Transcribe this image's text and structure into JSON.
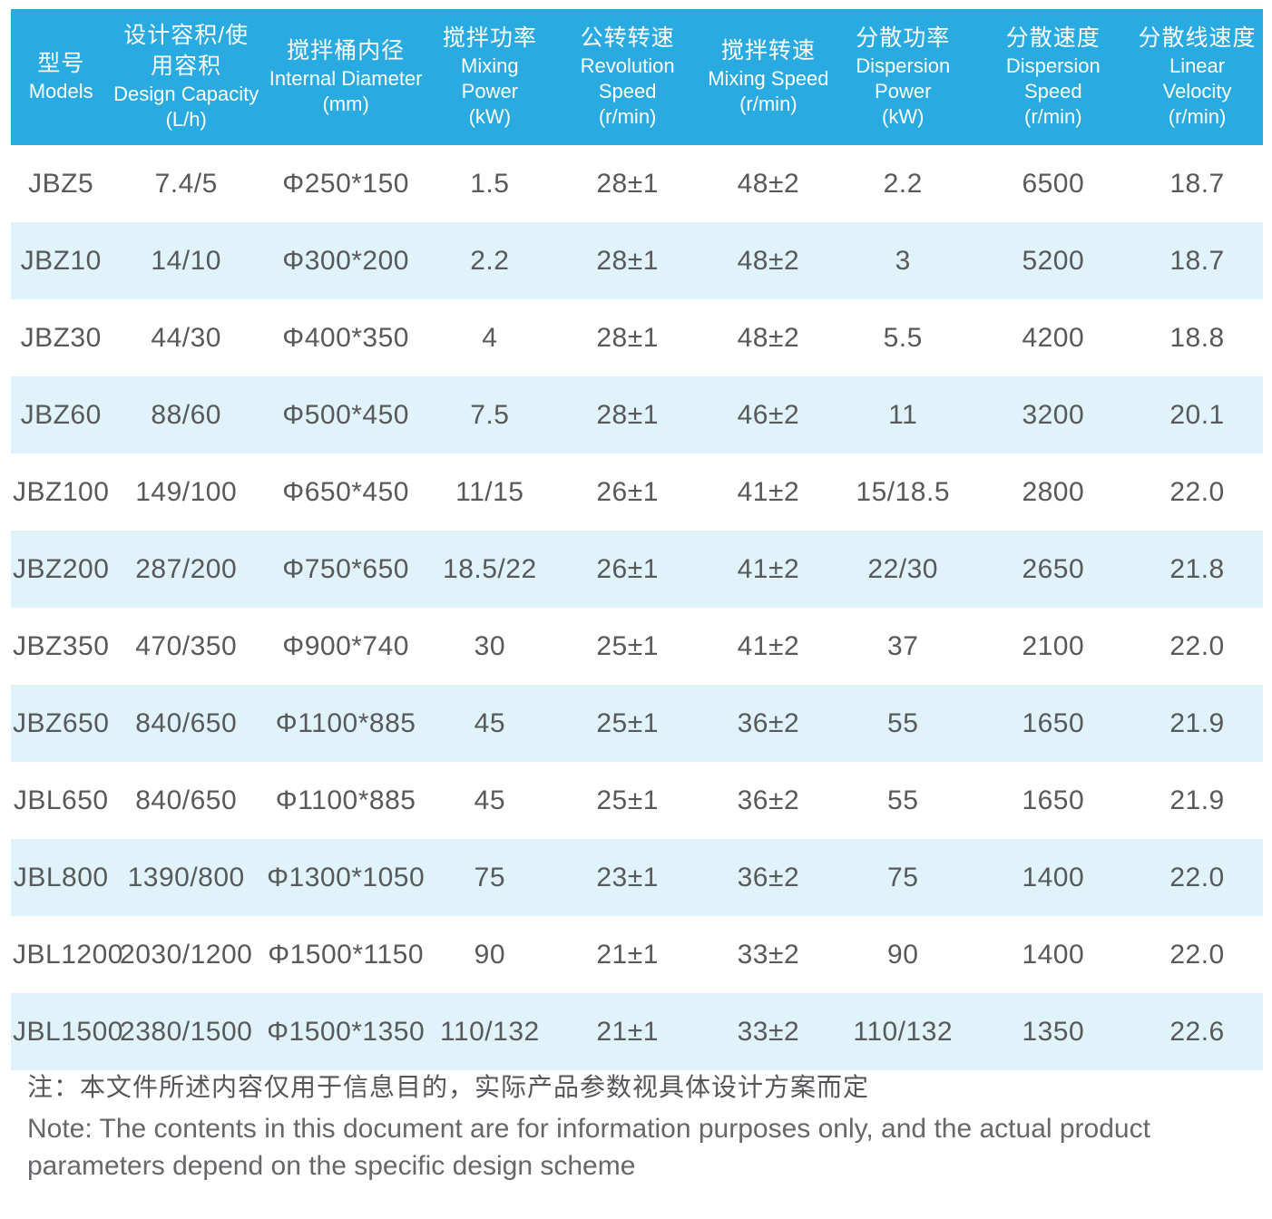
{
  "table": {
    "columns": [
      {
        "zh": "型号",
        "en": "Models",
        "unit": ""
      },
      {
        "zh": "设计容积/使用容积",
        "en": "Design Capacity",
        "unit": "(L/h)"
      },
      {
        "zh": "搅拌桶内径",
        "en": "Internal Diameter",
        "unit": "(mm)"
      },
      {
        "zh": "搅拌功率",
        "en": "Mixing Power",
        "unit": "(kW)"
      },
      {
        "zh": "公转转速",
        "en": "Revolution Speed",
        "unit": "(r/min)"
      },
      {
        "zh": "搅拌转速",
        "en": "Mixing Speed",
        "unit": "(r/min)"
      },
      {
        "zh": "分散功率",
        "en": "Dispersion Power",
        "unit": "(kW)"
      },
      {
        "zh": "分散速度",
        "en": "Dispersion Speed",
        "unit": "(r/min)"
      },
      {
        "zh": "分散线速度",
        "en": "Linear Velocity",
        "unit": "(r/min)"
      }
    ],
    "col_widths_pct": [
      8,
      12,
      13.5,
      9.5,
      12.5,
      10,
      11.5,
      12.5,
      10.5
    ],
    "rows": [
      [
        "JBZ5",
        "7.4/5",
        "Φ250*150",
        "1.5",
        "28±1",
        "48±2",
        "2.2",
        "6500",
        "18.7"
      ],
      [
        "JBZ10",
        "14/10",
        "Φ300*200",
        "2.2",
        "28±1",
        "48±2",
        "3",
        "5200",
        "18.7"
      ],
      [
        "JBZ30",
        "44/30",
        "Φ400*350",
        "4",
        "28±1",
        "48±2",
        "5.5",
        "4200",
        "18.8"
      ],
      [
        "JBZ60",
        "88/60",
        "Φ500*450",
        "7.5",
        "28±1",
        "46±2",
        "11",
        "3200",
        "20.1"
      ],
      [
        "JBZ100",
        "149/100",
        "Φ650*450",
        "11/15",
        "26±1",
        "41±2",
        "15/18.5",
        "2800",
        "22.0"
      ],
      [
        "JBZ200",
        "287/200",
        "Φ750*650",
        "18.5/22",
        "26±1",
        "41±2",
        "22/30",
        "2650",
        "21.8"
      ],
      [
        "JBZ350",
        "470/350",
        "Φ900*740",
        "30",
        "25±1",
        "41±2",
        "37",
        "2100",
        "22.0"
      ],
      [
        "JBZ650",
        "840/650",
        "Φ1100*885",
        "45",
        "25±1",
        "36±2",
        "55",
        "1650",
        "21.9"
      ],
      [
        "JBL650",
        "840/650",
        "Φ1100*885",
        "45",
        "25±1",
        "36±2",
        "55",
        "1650",
        "21.9"
      ],
      [
        "JBL800",
        "1390/800",
        "Φ1300*1050",
        "75",
        "23±1",
        "36±2",
        "75",
        "1400",
        "22.0"
      ],
      [
        "JBL1200",
        "2030/1200",
        "Φ1500*1150",
        "90",
        "21±1",
        "33±2",
        "90",
        "1400",
        "22.0"
      ],
      [
        "JBL1500",
        "2380/1500",
        "Φ1500*1350",
        "110/132",
        "21±1",
        "33±2",
        "110/132",
        "1350",
        "22.6"
      ]
    ]
  },
  "notes": {
    "zh": "注：本文件所述内容仅用于信息目的，实际产品参数视具体设计方案而定",
    "en": "Note: The contents in this document are for information purposes only, and the actual product parameters depend on the specific design scheme"
  },
  "colors": {
    "header_bg": "#29abe2",
    "stripe_bg": "#e0f3fa",
    "header_text": "#ffffff",
    "body_text": "#58595b"
  }
}
